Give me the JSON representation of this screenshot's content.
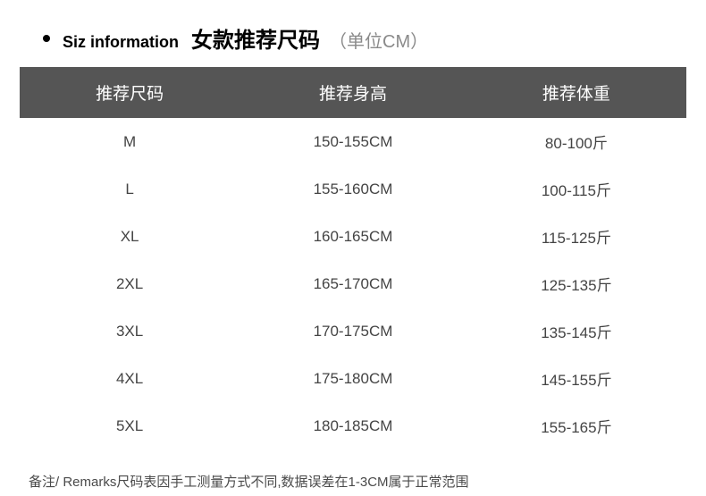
{
  "header": {
    "en_label": "Siz information",
    "cn_label": "女款推荐尺码",
    "unit": "（单位CM）"
  },
  "table": {
    "columns": [
      "推荐尺码",
      "推荐身高",
      "推荐体重"
    ],
    "column_widths": [
      "33%",
      "34%",
      "33%"
    ],
    "header_bg": "#555555",
    "header_color": "#ffffff",
    "header_fontsize": 19,
    "cell_fontsize": 17,
    "cell_color": "#444444",
    "rows": [
      [
        "M",
        "150-155CM",
        "80-100斤"
      ],
      [
        "L",
        "155-160CM",
        "100-115斤"
      ],
      [
        "XL",
        "160-165CM",
        "115-125斤"
      ],
      [
        "2XL",
        "165-170CM",
        "125-135斤"
      ],
      [
        "3XL",
        "170-175CM",
        "135-145斤"
      ],
      [
        "4XL",
        "175-180CM",
        "145-155斤"
      ],
      [
        "5XL",
        "180-185CM",
        "155-165斤"
      ]
    ]
  },
  "footer": {
    "text": "备注/ Remarks尺码表因手工测量方式不同,数据误差在1-3CM属于正常范围"
  },
  "colors": {
    "background": "#ffffff",
    "bullet": "#000000",
    "header_unit_color": "#8a8a8a",
    "footer_color": "#4a4a4a"
  }
}
